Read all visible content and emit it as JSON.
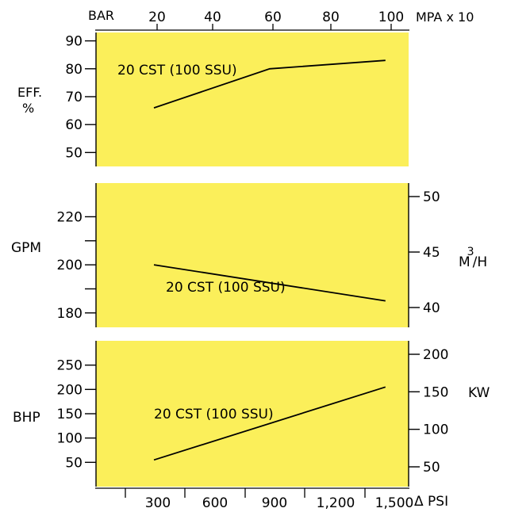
{
  "chart_data": [
    {
      "type": "line",
      "top_axis": {
        "left_label": "BAR",
        "right_label": "MPA x 10",
        "ticks": [
          "20",
          "40",
          "60",
          "80",
          "100"
        ]
      },
      "ylabel": "EFF. %",
      "y_ticks": [
        90,
        80,
        70,
        60,
        50
      ],
      "ylim": [
        45,
        93
      ],
      "annotation": "20 CST (100 SSU)",
      "series": [
        {
          "x": [
            300,
            900,
            1500
          ],
          "y": [
            66,
            80,
            83
          ]
        }
      ]
    },
    {
      "type": "line",
      "ylabel": "GPM",
      "ylabel_right": "M3/H",
      "y_ticks": [
        220,
        200,
        180
      ],
      "y_ticks_right": [
        50,
        45,
        40
      ],
      "ylim": [
        174,
        234
      ],
      "annotation": "20 CST (100 SSU)",
      "series": [
        {
          "x": [
            300,
            1500
          ],
          "y": [
            200,
            185
          ]
        }
      ]
    },
    {
      "type": "line",
      "ylabel": "BHP",
      "ylabel_right": "KW",
      "y_ticks": [
        250,
        200,
        150,
        100,
        50
      ],
      "y_ticks_right": [
        200,
        150,
        100,
        50
      ],
      "ylim": [
        0,
        300
      ],
      "annotation": "20 CST (100 SSU)",
      "xlabel": "Δ PSI",
      "x_ticks": [
        "300",
        "600",
        "900",
        "1,200",
        "1,500"
      ],
      "series": [
        {
          "x": [
            300,
            1500
          ],
          "y": [
            55,
            205
          ]
        }
      ]
    }
  ],
  "colors": {
    "panel": "#fbef5a",
    "line": "#000000"
  }
}
